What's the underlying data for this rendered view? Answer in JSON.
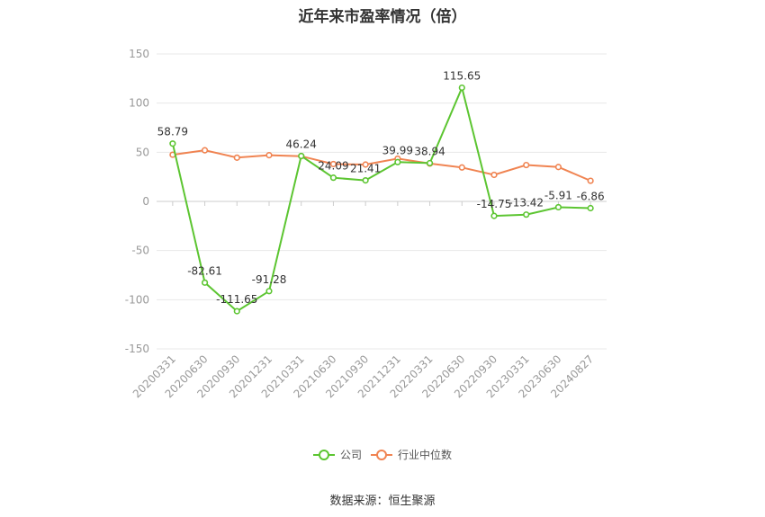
{
  "chart_data": {
    "type": "line",
    "title": "近年来市盈率情况（倍）",
    "source": "数据来源：恒生聚源",
    "categories": [
      "20200331",
      "20200630",
      "20200930",
      "20201231",
      "20210331",
      "20210630",
      "20210930",
      "20211231",
      "20220331",
      "20220630",
      "20220930",
      "20230331",
      "20230630",
      "20240827"
    ],
    "ylim": [
      -150,
      150
    ],
    "yticks": [
      150,
      100,
      50,
      0,
      -50,
      -100,
      -150
    ],
    "grid": true,
    "legend_position": "bottom",
    "series": [
      {
        "name": "公司",
        "color": "#5cc531",
        "values": [
          58.79,
          -82.61,
          -111.65,
          -91.28,
          46.24,
          24.09,
          21.41,
          39.99,
          38.94,
          115.65,
          -14.75,
          -13.42,
          -5.91,
          -6.86
        ],
        "labels": [
          "58.79",
          "-82.61",
          "-111.65",
          "-91.28",
          "46.24",
          "24.09",
          "21.41",
          "39.99",
          "38.94",
          "115.65",
          "-14.75",
          "-13.42",
          "-5.91",
          "-6.86"
        ]
      },
      {
        "name": "行业中位数",
        "color": "#f08452",
        "values": [
          47.5,
          52,
          44.5,
          47,
          46,
          38,
          37.5,
          43.5,
          38.5,
          34.5,
          27,
          37,
          35,
          21
        ]
      }
    ]
  }
}
